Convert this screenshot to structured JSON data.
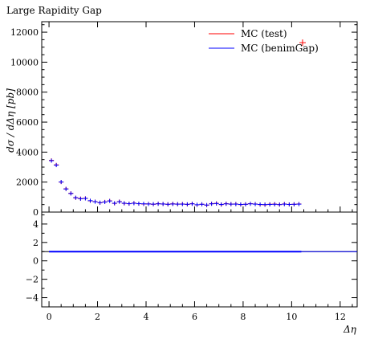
{
  "chart_data": {
    "type": "scatter",
    "title": "Large Rapidity Gap",
    "xlabel": "Δη",
    "ylabel": "dσ / dΔη [pb]",
    "xlim": [
      -0.3,
      12.7
    ],
    "ylim": [
      0,
      12700
    ],
    "x_ticks": [
      "0",
      "2",
      "4",
      "6",
      "8",
      "10",
      "12"
    ],
    "y_ticks": [
      "0",
      "2000",
      "4000",
      "6000",
      "8000",
      "10000",
      "12000"
    ],
    "ratio_ylim": [
      -5,
      5.3
    ],
    "ratio_ticks": [
      "4",
      "2",
      "0",
      "−2",
      "−4"
    ],
    "legend": [
      {
        "name": "MC (test)",
        "color": "#ff0000"
      },
      {
        "name": "MC (benimGap)",
        "color": "#0000ff"
      }
    ],
    "x": [
      0.1,
      0.3,
      0.5,
      0.7,
      0.9,
      1.1,
      1.3,
      1.5,
      1.7,
      1.9,
      2.1,
      2.3,
      2.5,
      2.7,
      2.9,
      3.1,
      3.3,
      3.5,
      3.7,
      3.9,
      4.1,
      4.3,
      4.5,
      4.7,
      4.9,
      5.1,
      5.3,
      5.5,
      5.7,
      5.9,
      6.1,
      6.3,
      6.5,
      6.7,
      6.9,
      7.1,
      7.3,
      7.5,
      7.7,
      7.9,
      8.1,
      8.3,
      8.5,
      8.7,
      8.9,
      9.1,
      9.3,
      9.5,
      9.7,
      9.9,
      10.1,
      10.3
    ],
    "series": [
      {
        "name": "MC (test)",
        "color": "#ff0000",
        "values": [
          3450,
          3150,
          2000,
          1550,
          1250,
          950,
          900,
          920,
          750,
          700,
          620,
          680,
          750,
          580,
          700,
          580,
          560,
          600,
          560,
          540,
          550,
          520,
          560,
          540,
          520,
          550,
          530,
          540,
          510,
          560,
          480,
          520,
          460,
          560,
          580,
          500,
          560,
          530,
          540,
          500,
          520,
          560,
          540,
          500,
          490,
          520,
          530,
          500,
          540,
          510,
          520,
          540
        ],
        "extra_point": {
          "x": 10.45,
          "y": 11300
        }
      },
      {
        "name": "MC (benimGap)",
        "color": "#0000ff",
        "values": [
          3430,
          3130,
          2010,
          1540,
          1240,
          960,
          890,
          910,
          760,
          690,
          630,
          670,
          740,
          590,
          690,
          590,
          560,
          590,
          560,
          550,
          540,
          530,
          550,
          540,
          520,
          540,
          530,
          530,
          520,
          550,
          490,
          520,
          470,
          550,
          570,
          510,
          550,
          530,
          530,
          510,
          520,
          550,
          530,
          510,
          500,
          510,
          520,
          500,
          530,
          510,
          520,
          530
        ]
      }
    ],
    "ratio": {
      "value": 1.0,
      "x_end": 12.7
    }
  }
}
